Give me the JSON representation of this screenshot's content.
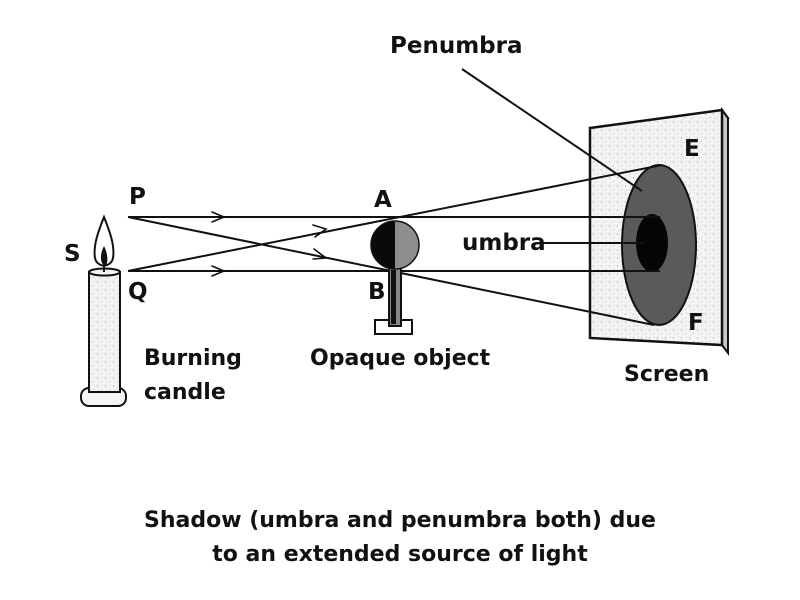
{
  "labels": {
    "source": "S",
    "point_p": "P",
    "point_q": "Q",
    "point_a": "A",
    "point_b": "B",
    "point_e": "E",
    "point_f": "F",
    "penumbra": "Penumbra",
    "umbra": "umbra",
    "candle": [
      "Burning",
      "candle"
    ],
    "object": "Opaque object",
    "screen": "Screen"
  },
  "caption": [
    "Shadow (umbra and penumbra both) due",
    "to an extended source of light"
  ],
  "colors": {
    "line": "#111111",
    "penumbra": "#5a5a5a",
    "umbra": "#050505",
    "screen_fill": "#f4f4f4",
    "object_dark": "#0a0a0a",
    "object_light": "#8e8e8e"
  }
}
